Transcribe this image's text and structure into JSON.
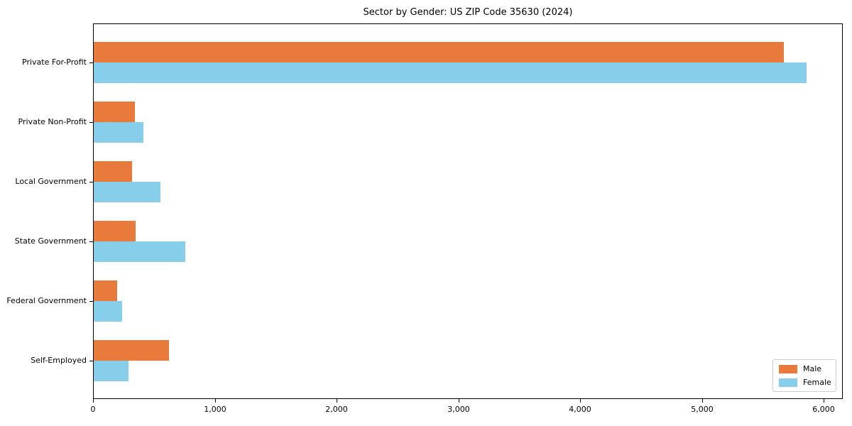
{
  "chart_data": {
    "type": "bar",
    "orientation": "horizontal",
    "title": "Sector by Gender: US ZIP Code 35630 (2024)",
    "categories": [
      "Private For-Profit",
      "Private Non-Profit",
      "Local Government",
      "State Government",
      "Federal Government",
      "Self-Employed"
    ],
    "series": [
      {
        "name": "Male",
        "color": "#e87a3c",
        "values": [
          5670,
          345,
          320,
          350,
          200,
          625
        ]
      },
      {
        "name": "Female",
        "color": "#87ceeb",
        "values": [
          5860,
          415,
          555,
          760,
          240,
          290
        ]
      }
    ],
    "xlabel": "",
    "ylabel": "",
    "xlim": [
      0,
      6155
    ],
    "xticks": [
      0,
      1000,
      2000,
      3000,
      4000,
      5000,
      6000
    ],
    "xtick_labels": [
      "0",
      "1,000",
      "2,000",
      "3,000",
      "4,000",
      "5,000",
      "6,000"
    ],
    "grid": false,
    "legend": {
      "position": "lower-right",
      "entries": [
        "Male",
        "Female"
      ]
    },
    "colors": {
      "background": "#ffffff",
      "axis": "#000000",
      "legend_border": "#cccccc"
    }
  }
}
